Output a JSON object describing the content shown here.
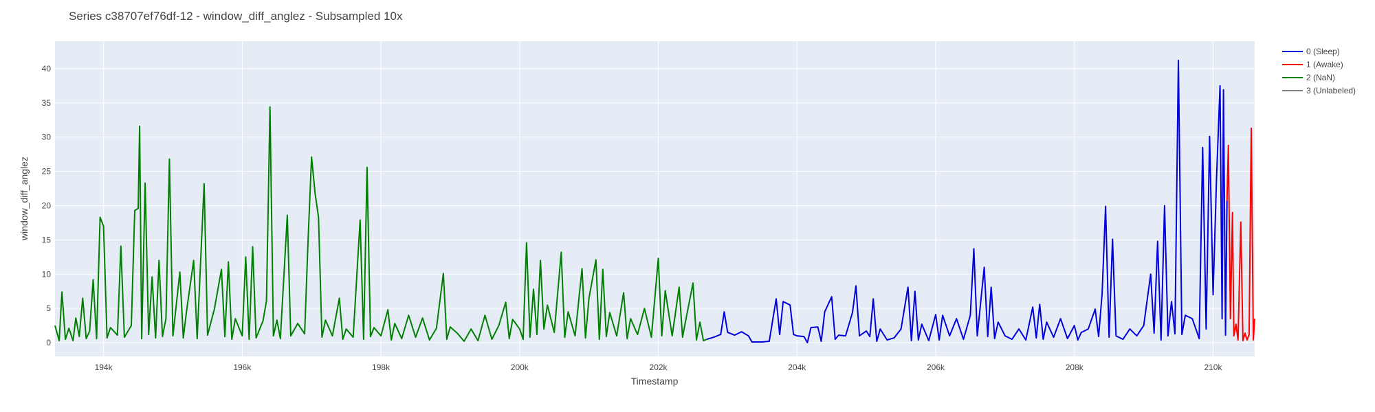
{
  "chart_data": {
    "type": "line",
    "title": "Series c38707ef76df-12 - window_diff_anglez - Subsampled 10x",
    "xlabel": "Timestamp",
    "ylabel": "window_diff_anglez",
    "xlim": [
      193300,
      210600
    ],
    "ylim": [
      -2,
      44
    ],
    "x_ticks": [
      194000,
      196000,
      198000,
      200000,
      202000,
      204000,
      206000,
      208000,
      210000
    ],
    "x_tick_labels": [
      "194k",
      "196k",
      "198k",
      "200k",
      "202k",
      "204k",
      "206k",
      "208k",
      "210k"
    ],
    "y_ticks": [
      0,
      5,
      10,
      15,
      20,
      25,
      30,
      35,
      40
    ],
    "y_tick_labels": [
      "0",
      "5",
      "10",
      "15",
      "20",
      "25",
      "30",
      "35",
      "40"
    ],
    "grid": true,
    "legend_position": "right",
    "colors": {
      "plot_bg": "#e5ecf6",
      "grid": "#ffffff"
    },
    "series": [
      {
        "name": "0 (Sleep)",
        "color": "#0000dd",
        "points": [
          [
            202700,
            0.5
          ],
          [
            202800,
            0.8
          ],
          [
            202900,
            1.2
          ],
          [
            202950,
            4.5
          ],
          [
            203000,
            1.5
          ],
          [
            203100,
            1.1
          ],
          [
            203200,
            1.6
          ],
          [
            203300,
            1.0
          ],
          [
            203350,
            0.1
          ],
          [
            203500,
            0.1
          ],
          [
            203600,
            0.2
          ],
          [
            203700,
            6.4
          ],
          [
            203750,
            1.2
          ],
          [
            203800,
            6.0
          ],
          [
            203900,
            5.5
          ],
          [
            203950,
            1.2
          ],
          [
            204000,
            1.0
          ],
          [
            204100,
            0.9
          ],
          [
            204150,
            0.0
          ],
          [
            204200,
            2.2
          ],
          [
            204300,
            2.3
          ],
          [
            204350,
            0.2
          ],
          [
            204400,
            4.5
          ],
          [
            204500,
            6.7
          ],
          [
            204550,
            0.5
          ],
          [
            204600,
            1.1
          ],
          [
            204700,
            1.0
          ],
          [
            204800,
            4.4
          ],
          [
            204850,
            8.3
          ],
          [
            204900,
            1.0
          ],
          [
            205000,
            1.7
          ],
          [
            205050,
            0.9
          ],
          [
            205100,
            6.4
          ],
          [
            205150,
            0.2
          ],
          [
            205200,
            2.0
          ],
          [
            205300,
            0.4
          ],
          [
            205400,
            0.7
          ],
          [
            205500,
            2.0
          ],
          [
            205600,
            8.1
          ],
          [
            205650,
            0.3
          ],
          [
            205700,
            7.5
          ],
          [
            205750,
            0.4
          ],
          [
            205800,
            2.7
          ],
          [
            205900,
            0.3
          ],
          [
            206000,
            4.1
          ],
          [
            206050,
            0.4
          ],
          [
            206100,
            4.0
          ],
          [
            206200,
            1.0
          ],
          [
            206300,
            3.5
          ],
          [
            206400,
            0.5
          ],
          [
            206500,
            4.0
          ],
          [
            206550,
            13.7
          ],
          [
            206600,
            1.0
          ],
          [
            206700,
            11.0
          ],
          [
            206750,
            0.9
          ],
          [
            206800,
            8.1
          ],
          [
            206850,
            0.6
          ],
          [
            206900,
            3.0
          ],
          [
            207000,
            1.0
          ],
          [
            207100,
            0.5
          ],
          [
            207200,
            2.0
          ],
          [
            207300,
            0.4
          ],
          [
            207400,
            5.2
          ],
          [
            207450,
            0.7
          ],
          [
            207500,
            5.6
          ],
          [
            207550,
            0.5
          ],
          [
            207600,
            3.0
          ],
          [
            207700,
            0.8
          ],
          [
            207800,
            3.5
          ],
          [
            207900,
            0.6
          ],
          [
            208000,
            2.5
          ],
          [
            208050,
            0.4
          ],
          [
            208100,
            1.5
          ],
          [
            208200,
            2.0
          ],
          [
            208300,
            4.9
          ],
          [
            208350,
            0.9
          ],
          [
            208400,
            7.2
          ],
          [
            208450,
            19.9
          ],
          [
            208500,
            0.8
          ],
          [
            208550,
            15.1
          ],
          [
            208600,
            1.0
          ],
          [
            208700,
            0.5
          ],
          [
            208800,
            2.0
          ],
          [
            208900,
            1.0
          ],
          [
            209000,
            2.5
          ],
          [
            209100,
            10.0
          ],
          [
            209150,
            1.4
          ],
          [
            209200,
            14.8
          ],
          [
            209250,
            0.4
          ],
          [
            209300,
            20.0
          ],
          [
            209350,
            1.0
          ],
          [
            209400,
            6.0
          ],
          [
            209450,
            1.3
          ],
          [
            209500,
            41.2
          ],
          [
            209550,
            1.2
          ],
          [
            209600,
            4.0
          ],
          [
            209700,
            3.5
          ],
          [
            209800,
            0.6
          ],
          [
            209850,
            28.5
          ],
          [
            209900,
            2.0
          ],
          [
            209950,
            30.1
          ],
          [
            210000,
            7.0
          ],
          [
            210050,
            24.0
          ],
          [
            210100,
            37.5
          ],
          [
            210130,
            3.5
          ],
          [
            210150,
            36.9
          ],
          [
            210180,
            1.1
          ],
          [
            210200,
            20.7
          ]
        ]
      },
      {
        "name": "1 (Awake)",
        "color": "#ff0000",
        "points": [
          [
            210200,
            20.7
          ],
          [
            210220,
            28.8
          ],
          [
            210250,
            3.5
          ],
          [
            210280,
            19.0
          ],
          [
            210300,
            1.0
          ],
          [
            210330,
            2.7
          ],
          [
            210360,
            0.4
          ],
          [
            210400,
            17.6
          ],
          [
            210430,
            0.3
          ],
          [
            210460,
            1.4
          ],
          [
            210490,
            0.4
          ],
          [
            210520,
            1.2
          ],
          [
            210550,
            31.3
          ],
          [
            210580,
            0.4
          ],
          [
            210600,
            3.5
          ]
        ]
      },
      {
        "name": "2 (NaN)",
        "color": "#008000",
        "points": [
          [
            193300,
            2.5
          ],
          [
            193360,
            0.3
          ],
          [
            193400,
            7.4
          ],
          [
            193450,
            0.5
          ],
          [
            193500,
            2.1
          ],
          [
            193560,
            0.3
          ],
          [
            193600,
            3.6
          ],
          [
            193650,
            0.9
          ],
          [
            193700,
            6.5
          ],
          [
            193750,
            0.6
          ],
          [
            193800,
            1.7
          ],
          [
            193850,
            9.2
          ],
          [
            193900,
            0.6
          ],
          [
            193950,
            18.3
          ],
          [
            194000,
            17.0
          ],
          [
            194050,
            0.7
          ],
          [
            194100,
            2.2
          ],
          [
            194200,
            1.1
          ],
          [
            194250,
            14.1
          ],
          [
            194300,
            0.8
          ],
          [
            194400,
            2.5
          ],
          [
            194450,
            19.3
          ],
          [
            194500,
            19.6
          ],
          [
            194520,
            31.6
          ],
          [
            194550,
            0.6
          ],
          [
            194600,
            23.3
          ],
          [
            194650,
            1.2
          ],
          [
            194700,
            9.6
          ],
          [
            194750,
            0.7
          ],
          [
            194800,
            12.0
          ],
          [
            194850,
            0.9
          ],
          [
            194900,
            3.5
          ],
          [
            194950,
            26.8
          ],
          [
            195000,
            1.0
          ],
          [
            195100,
            10.3
          ],
          [
            195150,
            0.7
          ],
          [
            195200,
            4.8
          ],
          [
            195300,
            12.0
          ],
          [
            195350,
            0.6
          ],
          [
            195450,
            23.2
          ],
          [
            195500,
            1.1
          ],
          [
            195600,
            5.0
          ],
          [
            195700,
            10.7
          ],
          [
            195750,
            0.9
          ],
          [
            195800,
            11.8
          ],
          [
            195850,
            0.5
          ],
          [
            195900,
            3.5
          ],
          [
            196000,
            1.0
          ],
          [
            196050,
            12.5
          ],
          [
            196100,
            0.5
          ],
          [
            196150,
            14.0
          ],
          [
            196200,
            0.7
          ],
          [
            196300,
            3.2
          ],
          [
            196350,
            6.1
          ],
          [
            196400,
            34.4
          ],
          [
            196450,
            1.0
          ],
          [
            196500,
            3.3
          ],
          [
            196550,
            0.6
          ],
          [
            196650,
            18.6
          ],
          [
            196700,
            1.0
          ],
          [
            196800,
            2.8
          ],
          [
            196900,
            1.3
          ],
          [
            196950,
            15.2
          ],
          [
            197000,
            27.1
          ],
          [
            197050,
            21.8
          ],
          [
            197100,
            18.3
          ],
          [
            197150,
            0.8
          ],
          [
            197200,
            3.3
          ],
          [
            197300,
            1.0
          ],
          [
            197400,
            6.5
          ],
          [
            197450,
            0.5
          ],
          [
            197500,
            2.0
          ],
          [
            197600,
            0.8
          ],
          [
            197700,
            17.9
          ],
          [
            197750,
            0.5
          ],
          [
            197800,
            25.6
          ],
          [
            197850,
            0.9
          ],
          [
            197900,
            2.2
          ],
          [
            198000,
            1.0
          ],
          [
            198100,
            4.8
          ],
          [
            198150,
            0.4
          ],
          [
            198200,
            2.8
          ],
          [
            198300,
            0.6
          ],
          [
            198400,
            4.0
          ],
          [
            198500,
            0.8
          ],
          [
            198600,
            3.6
          ],
          [
            198700,
            0.4
          ],
          [
            198800,
            2.1
          ],
          [
            198900,
            10.1
          ],
          [
            198950,
            0.5
          ],
          [
            199000,
            2.3
          ],
          [
            199100,
            1.4
          ],
          [
            199200,
            0.2
          ],
          [
            199300,
            2.0
          ],
          [
            199400,
            0.3
          ],
          [
            199500,
            4.0
          ],
          [
            199600,
            0.5
          ],
          [
            199700,
            2.5
          ],
          [
            199800,
            5.9
          ],
          [
            199850,
            0.6
          ],
          [
            199900,
            3.4
          ],
          [
            200000,
            2.0
          ],
          [
            200050,
            0.5
          ],
          [
            200100,
            14.6
          ],
          [
            200150,
            0.8
          ],
          [
            200200,
            7.8
          ],
          [
            200250,
            1.2
          ],
          [
            200300,
            12.0
          ],
          [
            200350,
            2.0
          ],
          [
            200400,
            5.5
          ],
          [
            200500,
            1.5
          ],
          [
            200600,
            13.2
          ],
          [
            200650,
            0.8
          ],
          [
            200700,
            4.5
          ],
          [
            200800,
            1.0
          ],
          [
            200900,
            10.8
          ],
          [
            200950,
            0.7
          ],
          [
            201000,
            6.5
          ],
          [
            201100,
            12.1
          ],
          [
            201150,
            0.5
          ],
          [
            201200,
            10.7
          ],
          [
            201250,
            0.9
          ],
          [
            201300,
            4.4
          ],
          [
            201400,
            1.0
          ],
          [
            201500,
            7.3
          ],
          [
            201550,
            0.6
          ],
          [
            201600,
            3.5
          ],
          [
            201700,
            1.2
          ],
          [
            201800,
            5.0
          ],
          [
            201900,
            0.8
          ],
          [
            202000,
            12.3
          ],
          [
            202050,
            1.0
          ],
          [
            202100,
            7.6
          ],
          [
            202200,
            1.0
          ],
          [
            202300,
            8.1
          ],
          [
            202350,
            0.8
          ],
          [
            202400,
            3.5
          ],
          [
            202500,
            8.7
          ],
          [
            202550,
            0.4
          ],
          [
            202600,
            3.0
          ],
          [
            202650,
            0.3
          ],
          [
            202700,
            0.5
          ]
        ]
      },
      {
        "name": "3 (Unlabeled)",
        "color": "#808080",
        "points": []
      }
    ]
  }
}
